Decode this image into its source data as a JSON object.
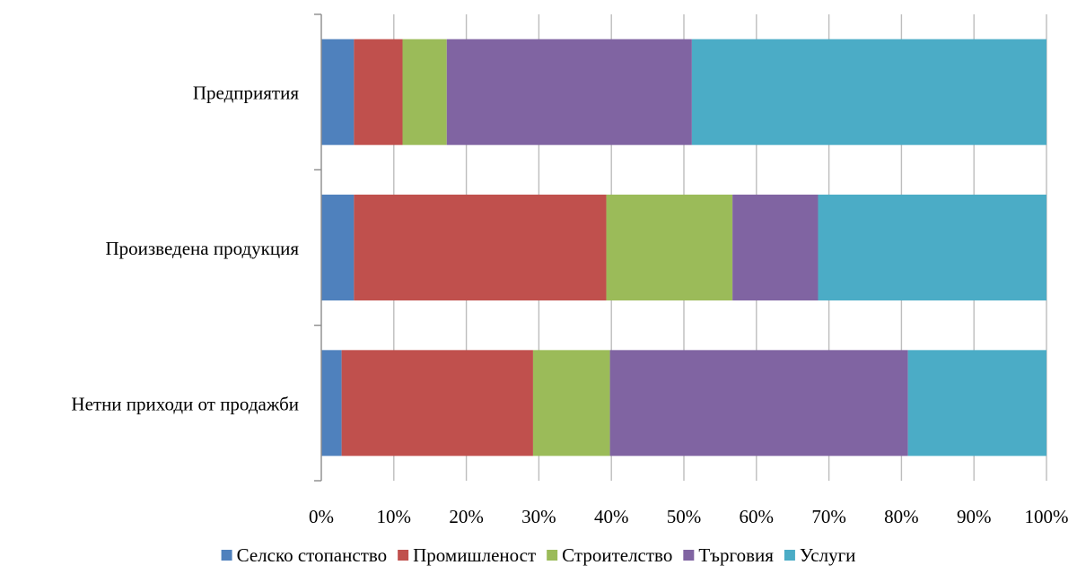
{
  "chart_data": {
    "type": "bar",
    "orientation": "horizontal",
    "stacked": "percent",
    "categories": [
      "Предприятия",
      "Произведена продукция",
      "Нетни приходи от продажби"
    ],
    "series": [
      {
        "name": "Селско стопанство",
        "color": "#4F81BD",
        "values": [
          4.5,
          4.5,
          2.8
        ]
      },
      {
        "name": "Промишленост",
        "color": "#C0504D",
        "values": [
          6.7,
          34.8,
          26.4
        ]
      },
      {
        "name": "Строителство",
        "color": "#9BBB59",
        "values": [
          6.1,
          17.4,
          10.6
        ]
      },
      {
        "name": "Търговия",
        "color": "#8064A2",
        "values": [
          33.8,
          11.8,
          41.1
        ]
      },
      {
        "name": "Услуги",
        "color": "#4BACC6",
        "values": [
          48.9,
          31.5,
          19.1
        ]
      }
    ],
    "xticks": [
      "0%",
      "10%",
      "20%",
      "30%",
      "40%",
      "50%",
      "60%",
      "70%",
      "80%",
      "90%",
      "100%"
    ],
    "xlim": [
      0,
      100
    ],
    "grid": true,
    "legend_position": "bottom"
  }
}
